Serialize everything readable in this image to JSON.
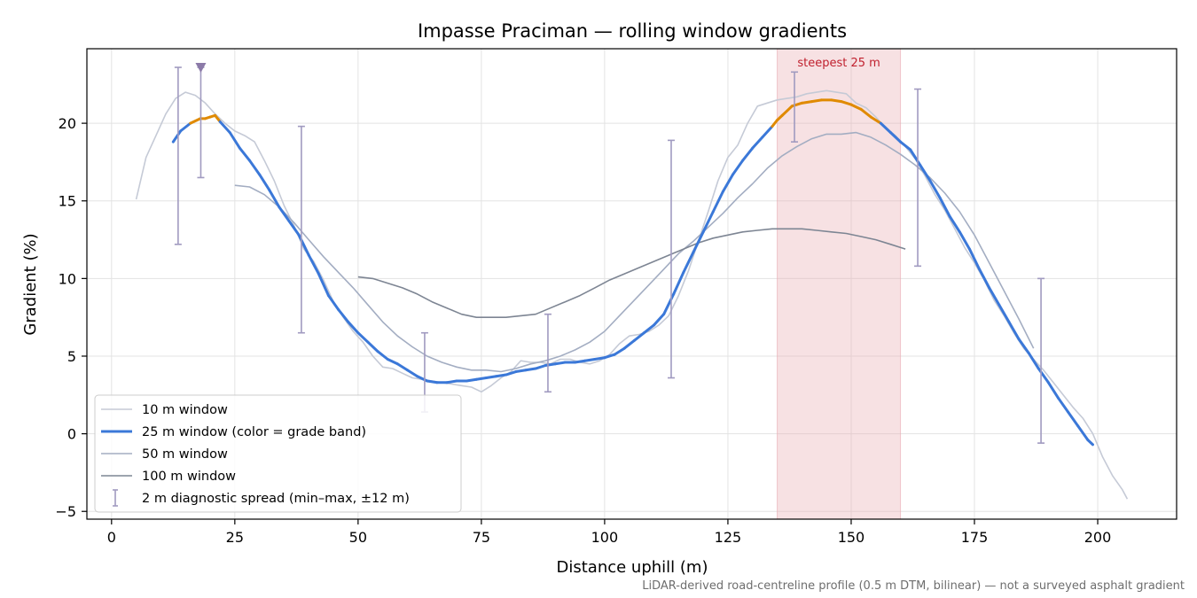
{
  "chart_data": {
    "type": "line",
    "title": "Impasse Praciman — rolling window gradients",
    "xlabel": "Distance uphill (m)",
    "ylabel": "Gradient (%)",
    "xlim": [
      -5,
      216
    ],
    "ylim": [
      -5.5,
      24.8
    ],
    "xticks": [
      0,
      25,
      50,
      75,
      100,
      125,
      150,
      175,
      200
    ],
    "yticks": [
      -5,
      0,
      5,
      10,
      15,
      20
    ],
    "grid": true,
    "legend_position": "lower-left",
    "footnote": "LiDAR-derived road-centreline profile (0.5 m DTM, bilinear) — not a surveyed asphalt gradient",
    "highlight": {
      "label": "steepest 25 m",
      "x_start": 135,
      "x_end": 160,
      "color": "#e8a8b0"
    },
    "peak_marker": {
      "x": 18.1,
      "y": 23.6,
      "color": "#8b7aa8"
    },
    "series": [
      {
        "name": "10 m window",
        "color": "#c5cad6",
        "x": [
          5,
          7,
          9,
          11,
          13,
          15,
          17,
          19,
          21,
          23,
          25,
          27,
          29,
          31,
          33,
          35,
          37,
          39,
          41,
          43,
          45,
          47,
          49,
          51,
          53,
          55,
          57,
          59,
          61,
          63,
          65,
          67,
          69,
          71,
          73,
          75,
          77,
          79,
          81,
          83,
          85,
          87,
          89,
          91,
          93,
          95,
          97,
          99,
          101,
          103,
          105,
          107,
          109,
          111,
          113,
          115,
          117,
          119,
          121,
          123,
          125,
          127,
          129,
          131,
          133,
          135,
          137,
          139,
          141,
          143,
          145,
          147,
          149,
          151,
          153,
          155,
          157,
          159,
          161,
          163,
          165,
          167,
          169,
          171,
          173,
          175,
          177,
          179,
          181,
          183,
          185,
          187,
          189,
          191,
          193,
          195,
          197,
          199,
          201,
          203,
          205,
          206
        ],
        "y": [
          15.1,
          17.8,
          19.2,
          20.6,
          21.6,
          22.0,
          21.8,
          21.3,
          20.6,
          20.0,
          19.5,
          19.2,
          18.8,
          17.6,
          16.3,
          14.7,
          13.4,
          11.9,
          11.1,
          9.9,
          8.5,
          7.5,
          6.6,
          5.9,
          5.0,
          4.3,
          4.2,
          3.9,
          3.6,
          3.5,
          3.4,
          3.3,
          3.2,
          3.1,
          3.0,
          2.7,
          3.1,
          3.6,
          4.0,
          4.7,
          4.6,
          4.6,
          4.5,
          4.8,
          4.8,
          4.6,
          4.5,
          4.7,
          5.1,
          5.8,
          6.3,
          6.4,
          6.6,
          7.0,
          7.6,
          8.9,
          10.5,
          12.4,
          14.3,
          16.3,
          17.8,
          18.6,
          20.0,
          21.1,
          21.3,
          21.5,
          21.6,
          21.7,
          21.9,
          22.0,
          22.1,
          22.0,
          21.9,
          21.3,
          21.0,
          20.4,
          19.7,
          19.2,
          18.5,
          17.7,
          16.6,
          15.4,
          14.4,
          13.2,
          12.0,
          11.0,
          9.9,
          8.6,
          7.6,
          6.5,
          5.5,
          4.8,
          4.1,
          3.3,
          2.5,
          1.7,
          1.0,
          0.0,
          -1.5,
          -2.7,
          -3.6,
          -4.2
        ]
      },
      {
        "name": "25 m window (color = grade band)",
        "color": "#3b78d8",
        "band_color": "#e08a00",
        "band_threshold": 20,
        "x": [
          12.5,
          14,
          16,
          18,
          19,
          20,
          21,
          22,
          24,
          26,
          28,
          30,
          32,
          34,
          36,
          38,
          40,
          42,
          44,
          46,
          48,
          50,
          52,
          54,
          56,
          58,
          60,
          62,
          64,
          66,
          68,
          70,
          72,
          74,
          76,
          78,
          80,
          82,
          84,
          86,
          88,
          90,
          92,
          94,
          96,
          98,
          100,
          102,
          104,
          106,
          108,
          110,
          112,
          114,
          116,
          118,
          120,
          122,
          124,
          126,
          128,
          130,
          132,
          134,
          135,
          136,
          138,
          140,
          142,
          144,
          146,
          148,
          150,
          152,
          154,
          156,
          158,
          160,
          162,
          164,
          166,
          168,
          170,
          172,
          174,
          176,
          178,
          180,
          182,
          184,
          186,
          188,
          190,
          192,
          194,
          196,
          198,
          199
        ],
        "y": [
          18.8,
          19.5,
          20.0,
          20.3,
          20.3,
          20.4,
          20.5,
          20.1,
          19.4,
          18.4,
          17.6,
          16.7,
          15.7,
          14.6,
          13.7,
          12.8,
          11.5,
          10.3,
          8.9,
          8.0,
          7.2,
          6.5,
          5.9,
          5.3,
          4.8,
          4.5,
          4.1,
          3.7,
          3.4,
          3.3,
          3.3,
          3.4,
          3.4,
          3.5,
          3.6,
          3.7,
          3.8,
          4.0,
          4.1,
          4.2,
          4.4,
          4.5,
          4.6,
          4.6,
          4.7,
          4.8,
          4.9,
          5.1,
          5.5,
          6.0,
          6.5,
          7.0,
          7.7,
          9.0,
          10.4,
          11.7,
          13.0,
          14.3,
          15.6,
          16.7,
          17.6,
          18.4,
          19.1,
          19.8,
          20.2,
          20.5,
          21.1,
          21.3,
          21.4,
          21.5,
          21.5,
          21.4,
          21.2,
          20.9,
          20.4,
          20.0,
          19.4,
          18.8,
          18.3,
          17.3,
          16.3,
          15.2,
          14.0,
          13.0,
          11.9,
          10.6,
          9.4,
          8.3,
          7.2,
          6.1,
          5.2,
          4.2,
          3.3,
          2.3,
          1.4,
          0.5,
          -0.4,
          -0.7
        ]
      },
      {
        "name": "50 m window",
        "color": "#a3adc2",
        "x": [
          25,
          28,
          31,
          34,
          37,
          40,
          43,
          46,
          49,
          52,
          55,
          58,
          61,
          64,
          67,
          70,
          73,
          76,
          79,
          82,
          85,
          88,
          91,
          94,
          97,
          100,
          103,
          106,
          109,
          112,
          115,
          118,
          121,
          124,
          127,
          130,
          133,
          136,
          139,
          142,
          145,
          148,
          151,
          154,
          157,
          160,
          163,
          166,
          169,
          172,
          175,
          178,
          181,
          184,
          187
        ],
        "y": [
          16.0,
          15.9,
          15.4,
          14.6,
          13.6,
          12.5,
          11.4,
          10.4,
          9.4,
          8.3,
          7.2,
          6.3,
          5.6,
          5.0,
          4.6,
          4.3,
          4.1,
          4.1,
          4.0,
          4.2,
          4.5,
          4.7,
          5.0,
          5.4,
          5.9,
          6.6,
          7.6,
          8.6,
          9.6,
          10.6,
          11.6,
          12.4,
          13.3,
          14.2,
          15.2,
          16.1,
          17.1,
          17.9,
          18.5,
          19.0,
          19.3,
          19.3,
          19.4,
          19.1,
          18.6,
          18.0,
          17.3,
          16.5,
          15.5,
          14.3,
          12.8,
          11.0,
          9.2,
          7.4,
          5.5
        ]
      },
      {
        "name": "100 m window",
        "color": "#7d8593",
        "x": [
          50,
          53,
          56,
          59,
          62,
          65,
          68,
          71,
          74,
          77,
          80,
          83,
          86,
          89,
          92,
          95,
          98,
          101,
          104,
          107,
          110,
          113,
          116,
          119,
          122,
          125,
          128,
          131,
          134,
          137,
          140,
          143,
          146,
          149,
          152,
          155,
          158,
          161
        ],
        "y": [
          10.1,
          10.0,
          9.7,
          9.4,
          9.0,
          8.5,
          8.1,
          7.7,
          7.5,
          7.5,
          7.5,
          7.6,
          7.7,
          8.1,
          8.5,
          8.9,
          9.4,
          9.9,
          10.3,
          10.7,
          11.1,
          11.5,
          11.9,
          12.3,
          12.6,
          12.8,
          13.0,
          13.1,
          13.2,
          13.2,
          13.2,
          13.1,
          13.0,
          12.9,
          12.7,
          12.5,
          12.2,
          11.9
        ]
      }
    ],
    "diagnostic_spread": {
      "name": "2 m diagnostic spread (min–max, ±12 m)",
      "color": "#a09ac0",
      "points": [
        {
          "x": 13.5,
          "min": 12.2,
          "max": 23.6
        },
        {
          "x": 18.1,
          "min": 16.5,
          "max": 23.6
        },
        {
          "x": 38.5,
          "min": 6.5,
          "max": 19.8
        },
        {
          "x": 63.5,
          "min": 1.4,
          "max": 6.5
        },
        {
          "x": 88.5,
          "min": 2.7,
          "max": 7.7
        },
        {
          "x": 113.5,
          "min": 3.6,
          "max": 18.9
        },
        {
          "x": 138.5,
          "min": 18.8,
          "max": 23.3
        },
        {
          "x": 163.5,
          "min": 10.8,
          "max": 22.2
        },
        {
          "x": 188.5,
          "min": -0.6,
          "max": 10.0
        }
      ]
    }
  }
}
